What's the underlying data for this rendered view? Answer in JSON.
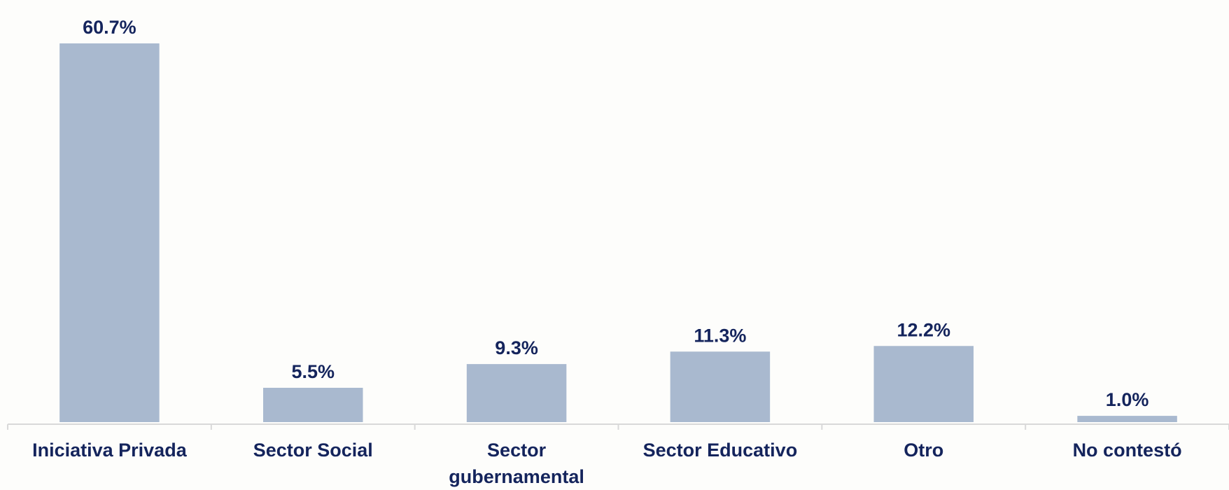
{
  "chart_data": {
    "type": "bar",
    "categories": [
      "Iniciativa Privada",
      "Sector Social",
      "Sector gubernamental",
      "Sector Educativo",
      "Otro",
      "No contestó"
    ],
    "values": [
      60.7,
      5.5,
      9.3,
      11.3,
      12.2,
      1.0
    ],
    "value_labels": [
      "60.7%",
      "5.5%",
      "9.3%",
      "11.3%",
      "12.2%",
      "1.0%"
    ],
    "color": "#a9b9cf"
  }
}
